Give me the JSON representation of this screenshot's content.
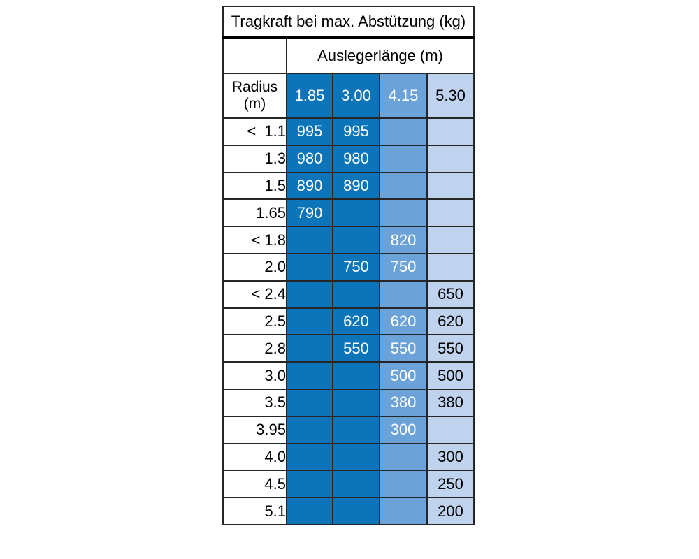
{
  "chart_data": {
    "type": "table",
    "title": "Tragkraft bei max. Abstützung (kg)",
    "column_group_label": "Auslegerlänge (m)",
    "row_header_lines": [
      "Radius",
      "(m)"
    ],
    "columns": [
      "1.85",
      "3.00",
      "4.15",
      "5.30"
    ],
    "rows": [
      {
        "radius": "<  1.1",
        "values": [
          995,
          995,
          null,
          null
        ]
      },
      {
        "radius": "1.3",
        "values": [
          980,
          980,
          null,
          null
        ]
      },
      {
        "radius": "1.5",
        "values": [
          890,
          890,
          null,
          null
        ]
      },
      {
        "radius": "1.65",
        "values": [
          790,
          null,
          null,
          null
        ]
      },
      {
        "radius": "< 1.8",
        "values": [
          null,
          null,
          820,
          null
        ]
      },
      {
        "radius": "2.0",
        "values": [
          null,
          750,
          750,
          null
        ]
      },
      {
        "radius": "< 2.4",
        "values": [
          null,
          null,
          null,
          650
        ]
      },
      {
        "radius": "2.5",
        "values": [
          null,
          620,
          620,
          620
        ]
      },
      {
        "radius": "2.8",
        "values": [
          null,
          550,
          550,
          550
        ]
      },
      {
        "radius": "3.0",
        "values": [
          null,
          null,
          500,
          500
        ]
      },
      {
        "radius": "3.5",
        "values": [
          null,
          null,
          380,
          380
        ]
      },
      {
        "radius": "3.95",
        "values": [
          null,
          null,
          300,
          null
        ]
      },
      {
        "radius": "4.0",
        "values": [
          null,
          null,
          null,
          300
        ]
      },
      {
        "radius": "4.5",
        "values": [
          null,
          null,
          null,
          250
        ]
      },
      {
        "radius": "5.1",
        "values": [
          null,
          null,
          null,
          200
        ]
      }
    ],
    "column_colors": [
      "#0c75ba",
      "#0c75ba",
      "#6ba3d9",
      "#bfd3ee"
    ],
    "column_text_colors": [
      "#ffffff",
      "#ffffff",
      "#ffffff",
      "#000000"
    ],
    "layout": {
      "grid_border_color": "#262626",
      "title_separator_color": "#000000",
      "background_color": "#ffffff"
    }
  }
}
